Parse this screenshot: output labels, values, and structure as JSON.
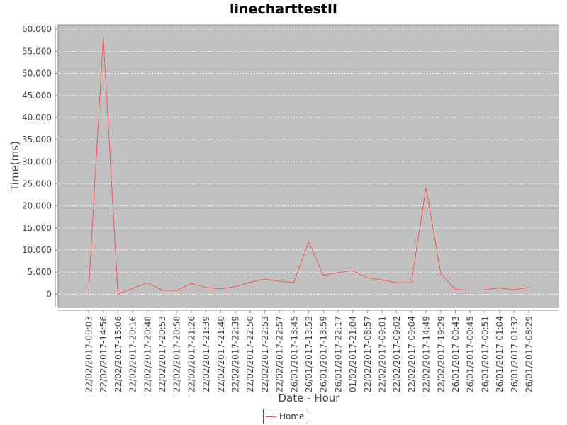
{
  "chart_data": {
    "type": "line",
    "title": "linecharttestII",
    "xlabel": "Date - Hour",
    "ylabel": "Time(ms)",
    "ylim": [
      -3000,
      61000
    ],
    "y_ticks": [
      0,
      5000,
      10000,
      15000,
      20000,
      25000,
      30000,
      35000,
      40000,
      45000,
      50000,
      55000,
      60000
    ],
    "y_tick_labels": [
      "0",
      "5.000",
      "10.000",
      "15.000",
      "20.000",
      "25.000",
      "30.000",
      "35.000",
      "40.000",
      "45.000",
      "50.000",
      "55.000",
      "60.000"
    ],
    "grid": true,
    "legend_position": "bottom-center",
    "categories": [
      "22/02/2017-09:03",
      "22/02/2017-14:56",
      "22/02/2017-15:08",
      "22/02/2017-20:16",
      "22/02/2017-20:48",
      "22/02/2017-20:53",
      "22/02/2017-20:58",
      "22/02/2017-21:26",
      "22/02/2017-21:39",
      "22/02/2017-21:40",
      "22/02/2017-22:39",
      "22/02/2017-22:50",
      "22/02/2017-22:53",
      "22/02/2017-22:57",
      "26/01/2017-13:45",
      "26/01/2017-13:53",
      "26/01/2017-13:59",
      "26/01/2017-22:17",
      "01/02/2017-21:04",
      "22/02/2017-08:57",
      "22/02/2017-09:01",
      "22/02/2017-09:02",
      "22/02/2017-09:04",
      "22/02/2017-14:49",
      "22/02/2017-19:29",
      "26/01/2017-00:43",
      "26/01/2017-00:45",
      "26/01/2017-00:51",
      "26/01/2017-01:04",
      "26/01/2017-01:32",
      "26/01/2017-08:29"
    ],
    "series": [
      {
        "name": "Home",
        "color": "#ff5555",
        "values": [
          800,
          58200,
          0,
          1300,
          2600,
          900,
          800,
          2400,
          1500,
          1200,
          1700,
          2700,
          3400,
          2900,
          2700,
          11900,
          4300,
          4900,
          5300,
          3700,
          3200,
          2600,
          2600,
          24200,
          4700,
          1100,
          900,
          1000,
          1400,
          1000,
          1500
        ]
      }
    ],
    "colors": {
      "plot_background": "#c0c0c0",
      "gridline": "#ffffff",
      "axis": "#888888",
      "series": "#ff5555"
    }
  }
}
